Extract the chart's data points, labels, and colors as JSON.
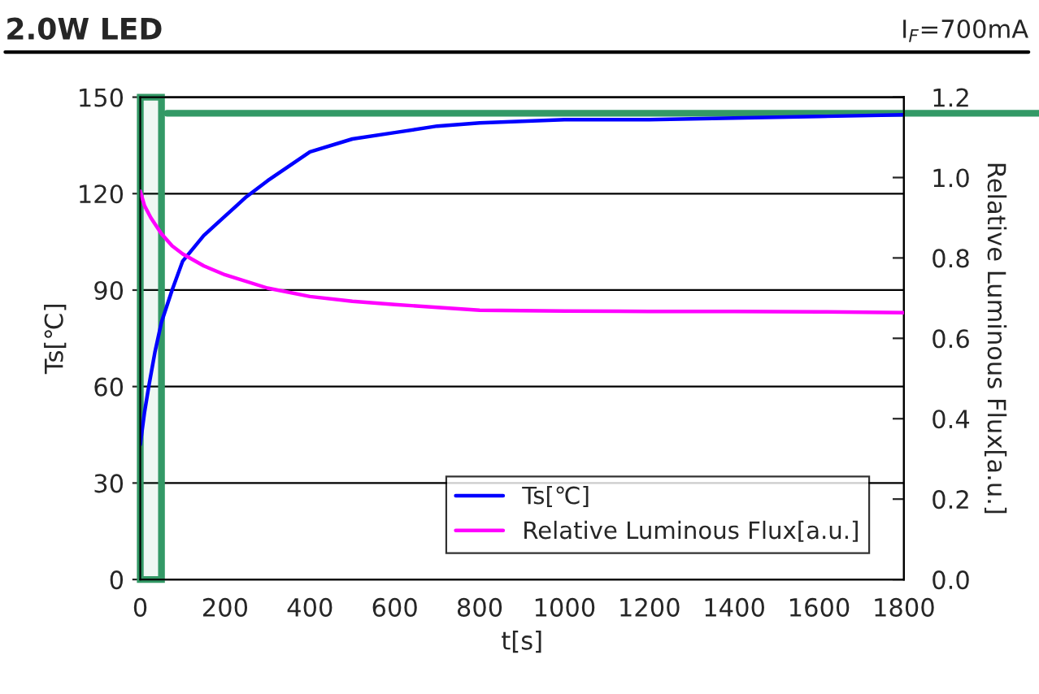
{
  "chart_data": {
    "type": "line",
    "title": "2.0W LED",
    "subtitle": "I$_{F}$=700mA",
    "xlabel": "t[s]",
    "ylabel": "Ts[℃]",
    "y2label": "Relative Luminous Flux[a.u.]",
    "xlim": [
      0,
      1800
    ],
    "xticks": [
      0,
      200,
      400,
      600,
      800,
      1000,
      1200,
      1400,
      1600,
      1800
    ],
    "ylim": [
      0,
      150
    ],
    "yticks": [
      0,
      30,
      60,
      90,
      120,
      150
    ],
    "y2lim": [
      0,
      1.2
    ],
    "y2ticks": [
      {
        "value": 0,
        "label": "0.0"
      },
      {
        "value": 0.2,
        "label": "0.2"
      },
      {
        "value": 0.4,
        "label": "0.4"
      },
      {
        "value": 0.6,
        "label": "0.6"
      },
      {
        "value": 0.8,
        "label": "0.8"
      },
      {
        "value": 1.0,
        "label": "1.0"
      },
      {
        "value": 1.2,
        "label": "1.2"
      }
    ],
    "grid": "y",
    "legend": "bottom right",
    "marker": "none",
    "line_style": "solid",
    "series": [
      {
        "name": "Ts[℃]",
        "color": "#0000ff",
        "x": [
          0,
          10,
          20,
          35,
          50,
          75,
          100,
          150,
          200,
          250,
          300,
          400,
          500,
          600,
          700,
          800,
          1000,
          1200,
          1400,
          1600,
          1800
        ],
        "values": [
          42,
          52,
          60,
          71,
          80,
          90,
          99,
          107,
          113,
          119,
          124,
          133,
          137,
          139,
          141,
          142,
          143,
          143,
          143.5,
          144,
          144.5
        ]
      },
      {
        "name": "Relative Luminous Flux[a.u.]",
        "color": "#ff00ff",
        "axis": "y2",
        "x": [
          0,
          10,
          25,
          50,
          75,
          100,
          150,
          200,
          300,
          400,
          500,
          600,
          700,
          800,
          1000,
          1200,
          1400,
          1600,
          1800
        ],
        "values": [
          0.966,
          0.93,
          0.9,
          0.86,
          0.83,
          0.81,
          0.78,
          0.758,
          0.725,
          0.704,
          0.692,
          0.684,
          0.677,
          0.67,
          0.668,
          0.667,
          0.667,
          0.666,
          0.664
        ]
      }
    ],
    "bands": [
      {
        "axis": "x",
        "from": 0,
        "to": 50,
        "color": "#339966"
      }
    ],
    "ref_lines": [
      {
        "axis": "y",
        "value": 145,
        "color": "#339966",
        "line_style": "solid"
      }
    ]
  }
}
